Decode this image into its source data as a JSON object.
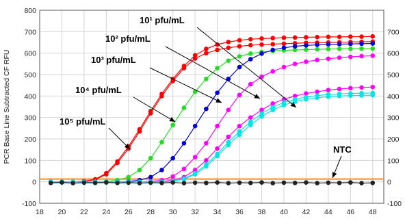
{
  "chart_data": {
    "type": "line",
    "ylabel": "PCR Base Line Subtracted CF RFU",
    "xlim": [
      18,
      49
    ],
    "ylim": [
      -100,
      800
    ],
    "xticks": [
      "18",
      "20",
      "22",
      "24",
      "26",
      "28",
      "30",
      "32",
      "34",
      "36",
      "38",
      "40",
      "42",
      "44",
      "46",
      "48"
    ],
    "yticks_left": [
      "-100",
      "0",
      "100",
      "200",
      "300",
      "400",
      "500",
      "600",
      "700",
      "800"
    ],
    "yticks_right": [
      "-100",
      "0",
      "100",
      "200",
      "300",
      "400",
      "500",
      "600",
      "700"
    ],
    "grid": true,
    "threshold": 13,
    "x": [
      19,
      20,
      21,
      22,
      23,
      24,
      25,
      26,
      27,
      28,
      29,
      30,
      31,
      32,
      33,
      34,
      35,
      36,
      37,
      38,
      39,
      40,
      41,
      42,
      43,
      44,
      45,
      46,
      47,
      48
    ],
    "series": [
      {
        "color": "#ff0000",
        "values": [
          0,
          0,
          0,
          3,
          12,
          40,
          95,
          165,
          245,
          330,
          410,
          480,
          540,
          590,
          620,
          640,
          652,
          660,
          665,
          668,
          670,
          672,
          673,
          674,
          675,
          676,
          676,
          677,
          677,
          678
        ]
      },
      {
        "color": "#ff0000",
        "values": [
          0,
          0,
          0,
          2,
          10,
          35,
          88,
          155,
          235,
          320,
          400,
          470,
          530,
          575,
          600,
          615,
          625,
          632,
          637,
          640,
          642,
          644,
          646,
          648,
          649,
          650,
          651,
          652,
          653,
          654
        ]
      },
      {
        "color": "#22dd22",
        "values": [
          0,
          0,
          0,
          0,
          0,
          2,
          8,
          22,
          55,
          110,
          185,
          265,
          345,
          420,
          480,
          530,
          565,
          585,
          598,
          605,
          610,
          613,
          615,
          616,
          618,
          619,
          620,
          620,
          621,
          621
        ]
      },
      {
        "color": "#0000dd",
        "values": [
          0,
          0,
          0,
          0,
          0,
          0,
          0,
          2,
          8,
          22,
          55,
          110,
          180,
          260,
          340,
          415,
          480,
          535,
          572,
          598,
          615,
          625,
          632,
          636,
          639,
          641,
          642,
          643,
          644,
          645
        ]
      },
      {
        "color": "#ff00ff",
        "values": [
          0,
          0,
          0,
          0,
          0,
          0,
          0,
          0,
          0,
          2,
          8,
          25,
          60,
          115,
          180,
          260,
          335,
          405,
          455,
          490,
          515,
          535,
          550,
          560,
          568,
          574,
          579,
          583,
          586,
          588
        ]
      },
      {
        "color": "#ff00ff",
        "values": [
          0,
          0,
          0,
          0,
          0,
          0,
          0,
          0,
          0,
          0,
          2,
          8,
          22,
          55,
          100,
          155,
          210,
          260,
          300,
          335,
          365,
          385,
          400,
          412,
          420,
          428,
          433,
          437,
          440,
          442
        ]
      },
      {
        "color": "#00e5e5",
        "values": [
          0,
          0,
          0,
          0,
          0,
          0,
          0,
          0,
          0,
          0,
          0,
          4,
          15,
          40,
          80,
          130,
          185,
          235,
          280,
          318,
          348,
          370,
          385,
          395,
          402,
          407,
          410,
          412,
          413,
          414
        ]
      },
      {
        "color": "#00e5e5",
        "values": [
          0,
          0,
          0,
          0,
          0,
          0,
          0,
          0,
          0,
          0,
          0,
          3,
          12,
          35,
          72,
          120,
          172,
          220,
          265,
          305,
          335,
          358,
          374,
          385,
          392,
          397,
          400,
          402,
          403,
          404
        ]
      },
      {
        "color": "#222222",
        "values": [
          -5,
          -3,
          -6,
          -4,
          -5,
          -3,
          -5,
          -4,
          -6,
          -4,
          -5,
          -3,
          -6,
          -4,
          -5,
          -3,
          -6,
          -4,
          -5,
          -3,
          -6,
          -4,
          -5,
          -3,
          -6,
          -4,
          -5,
          -3,
          -6,
          -5
        ]
      }
    ],
    "annotations": [
      {
        "text": "10¹ pfu/mL"
      },
      {
        "text": "10² pfu/mL"
      },
      {
        "text": "10³ pfu/mL"
      },
      {
        "text": "10⁴ pfu/mL"
      },
      {
        "text": "10⁵ pfu/mL"
      },
      {
        "text": "NTC"
      }
    ]
  }
}
